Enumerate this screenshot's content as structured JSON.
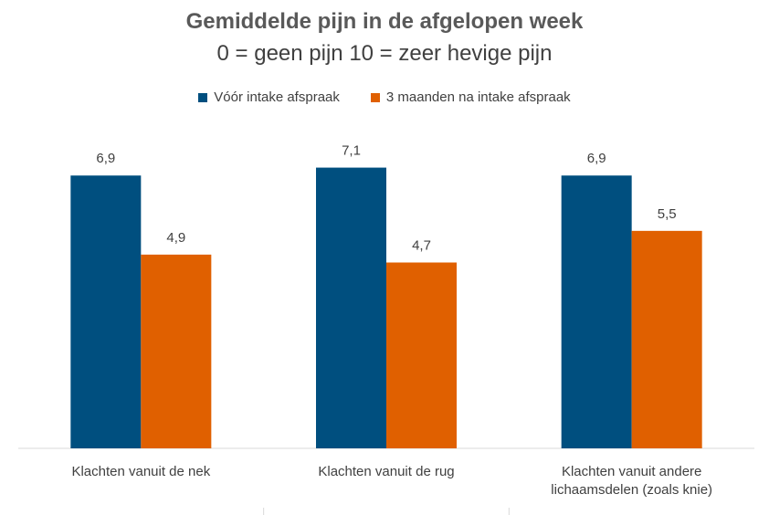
{
  "chart_data": {
    "type": "bar",
    "title": "Gemiddelde pijn in de afgelopen week",
    "subtitle": "0 = geen pijn  10 = zeer hevige pijn",
    "categories": [
      [
        "Klachten vanuit de nek"
      ],
      [
        "Klachten vanuit de rug"
      ],
      [
        "Klachten vanuit andere",
        "lichaamsdelen (zoals knie)"
      ]
    ],
    "series": [
      {
        "name": "Vóór intake afspraak",
        "color": "#004f7f",
        "values": [
          6.9,
          7.1,
          6.9
        ],
        "labels": [
          "6,9",
          "7,1",
          "6,9"
        ]
      },
      {
        "name": "3 maanden na intake afspraak",
        "color": "#e06000",
        "values": [
          4.9,
          4.7,
          5.5
        ],
        "labels": [
          "4,9",
          "4,7",
          "5,5"
        ]
      }
    ],
    "ylim": [
      0,
      10
    ],
    "grid": false,
    "legend": "top"
  }
}
